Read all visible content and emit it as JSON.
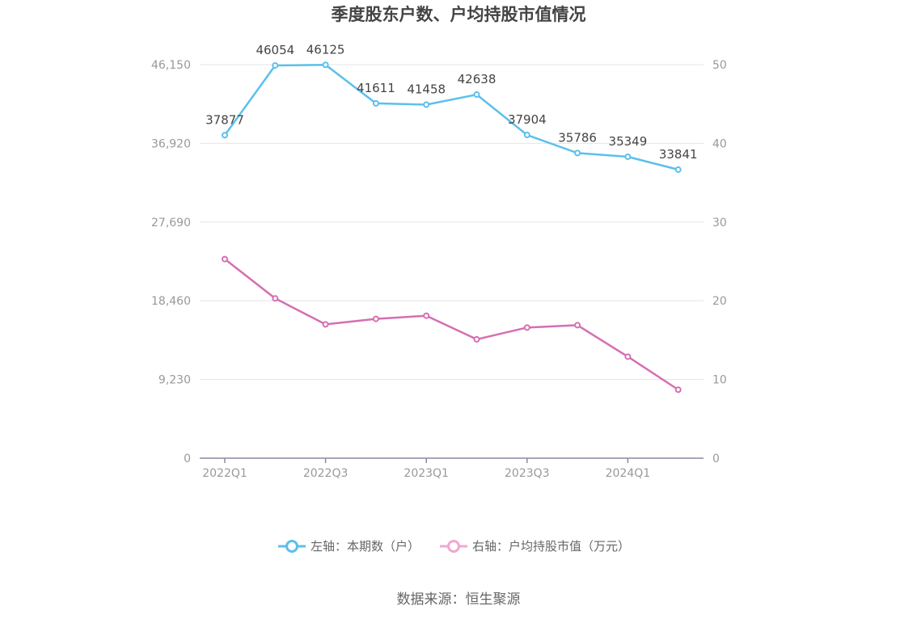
{
  "chart_data": {
    "type": "line",
    "title": "季度股东户数、户均持股市值情况",
    "categories": [
      "2022Q1",
      "2022Q2",
      "2022Q3",
      "2022Q4",
      "2023Q1",
      "2023Q2",
      "2023Q3",
      "2023Q4",
      "2024Q1",
      "2024Q2"
    ],
    "x_tick_labels": [
      "2022Q1",
      "2022Q3",
      "2023Q1",
      "2023Q3",
      "2024Q1"
    ],
    "y_left": {
      "min": 0,
      "max": 46150,
      "ticks": [
        "0",
        "9,230",
        "18,460",
        "27,690",
        "36,920",
        "46,150"
      ]
    },
    "y_right": {
      "min": 0,
      "max": 50,
      "ticks": [
        "0",
        "10",
        "20",
        "30",
        "40",
        "50"
      ]
    },
    "series": [
      {
        "name": "左轴：本期数（户）",
        "axis": "left",
        "color": "#5bc0eb",
        "values": [
          37877,
          46054,
          46125,
          41611,
          41458,
          42638,
          37904,
          35786,
          35349,
          33841
        ],
        "labels": [
          "37877",
          "46054",
          "46125",
          "41611",
          "41458",
          "42638",
          "37904",
          "35786",
          "35349",
          "33841"
        ]
      },
      {
        "name": "右轴：户均持股市值（万元）",
        "axis": "right",
        "color": "#d56fb2",
        "values": [
          25.3,
          20.3,
          17.0,
          17.7,
          18.1,
          15.1,
          16.6,
          16.9,
          12.9,
          8.7
        ]
      }
    ],
    "legend_position": "bottom",
    "grid": true
  },
  "source": "数据来源：恒生聚源"
}
